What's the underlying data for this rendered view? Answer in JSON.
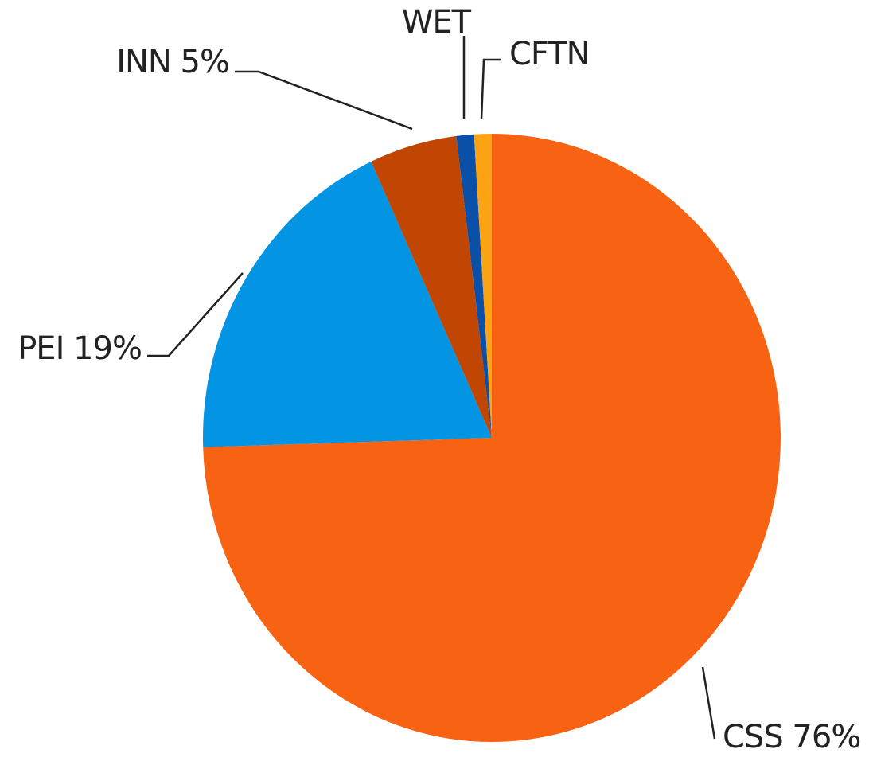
{
  "chart_data": {
    "type": "pie",
    "categories": [
      "CSS 76%",
      "PEI 19%",
      "INN 5%",
      "WET",
      "CFTN"
    ],
    "values": [
      76,
      19,
      5,
      1,
      1
    ],
    "colors": [
      "#f76213",
      "#0394e3",
      "#c14503",
      "#0a4fa8",
      "#fda314"
    ]
  }
}
